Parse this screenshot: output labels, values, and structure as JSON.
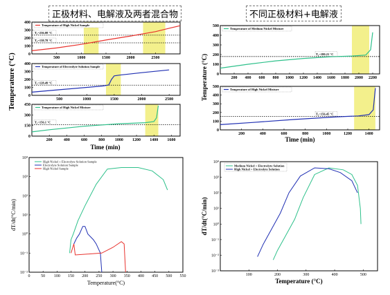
{
  "titles": {
    "left": "正极材料、电解液及两者混合物",
    "right": "不同正极材料+电解液"
  },
  "colors": {
    "red": "#e8312c",
    "blue": "#1f2fb3",
    "green": "#2dc08a",
    "highlight": "#f3f08c"
  },
  "chart_data": [
    {
      "id": "tl1",
      "type": "line",
      "legend": "Temperature of High Nickel Sample",
      "annotations": [
        "T₁=236.08 °C",
        "T₂=138.78 °C"
      ],
      "xlim": [
        0,
        3000
      ],
      "ylim": [
        0,
        400
      ],
      "yticks": [
        0,
        100,
        200,
        300,
        400
      ],
      "xticks": [
        500,
        1000,
        1500,
        2000,
        2500
      ],
      "highlight": [
        [
          1050,
          1350
        ],
        [
          2250,
          2700
        ]
      ],
      "hlines": [
        236,
        139
      ],
      "series": [
        {
          "points": [
            [
              0,
              40
            ],
            [
              500,
              75
            ],
            [
              1000,
              120
            ],
            [
              1500,
              175
            ],
            [
              2000,
              225
            ],
            [
              2500,
              280
            ],
            [
              2800,
              325
            ],
            [
              3000,
              355
            ]
          ]
        }
      ]
    },
    {
      "id": "tl2",
      "type": "line",
      "legend": "Temperature of Electrolyte Solution Sample",
      "annotations": [
        "T₁=128.49 °C"
      ],
      "xlim": [
        0,
        2700
      ],
      "ylim": [
        0,
        400
      ],
      "yticks": [
        0,
        100,
        200,
        300,
        400
      ],
      "xticks": [
        500,
        1000,
        1500,
        2000,
        2500
      ],
      "highlight": [
        [
          1350,
          1620
        ]
      ],
      "hlines": [
        128
      ],
      "series": [
        {
          "points": [
            [
              0,
              40
            ],
            [
              500,
              70
            ],
            [
              1000,
              100
            ],
            [
              1300,
              118
            ],
            [
              1400,
              130
            ],
            [
              1450,
              200
            ],
            [
              1500,
              245
            ],
            [
              1600,
              255
            ],
            [
              2000,
              285
            ],
            [
              2500,
              320
            ]
          ]
        }
      ]
    },
    {
      "id": "tl3",
      "type": "line",
      "legend": "Temperature of High Nickel Mixture",
      "annotations": [
        "T₁=156.1 °C"
      ],
      "xlim": [
        0,
        1700
      ],
      "ylim": [
        0,
        450
      ],
      "yticks": [
        0,
        150,
        300,
        450
      ],
      "xticks": [
        200,
        400,
        600,
        800,
        1000,
        1200,
        1400,
        1600
      ],
      "highlight": [
        [
          1300,
          1450
        ]
      ],
      "hlines": [
        160
      ],
      "series": [
        {
          "points": [
            [
              0,
              60
            ],
            [
              200,
              90
            ],
            [
              600,
              140
            ],
            [
              1000,
              175
            ],
            [
              1300,
              190
            ],
            [
              1400,
              205
            ],
            [
              1430,
              260
            ],
            [
              1450,
              430
            ]
          ]
        }
      ]
    },
    {
      "id": "bl",
      "type": "line",
      "ylabel": "dT/dt(°C/min)",
      "xlabel": "Temperature(°C)",
      "xlim": [
        0,
        550
      ],
      "ylim": [
        0.01,
        10000
      ],
      "log": true,
      "xticks": [
        0,
        50,
        100,
        150,
        200,
        250,
        300,
        350,
        400,
        450,
        500,
        550
      ],
      "yticks": [
        0.01,
        0.1,
        1,
        10,
        100,
        1000,
        10000
      ],
      "yticklabels": [
        "10⁻²",
        "10⁻¹",
        "10⁰",
        "10¹",
        "10²",
        "10³",
        "10⁴"
      ],
      "series": [
        {
          "name": "High Nickel + Electrolyte Solution Sample",
          "color": "green",
          "points": [
            [
              145,
              0.1
            ],
            [
              150,
              0.5
            ],
            [
              158,
              1
            ],
            [
              175,
              5
            ],
            [
              200,
              30
            ],
            [
              240,
              400
            ],
            [
              280,
              2500
            ],
            [
              330,
              3000
            ],
            [
              390,
              3000
            ],
            [
              440,
              2000
            ],
            [
              480,
              700
            ],
            [
              495,
              200
            ]
          ]
        },
        {
          "name": "Electrolyte Solution Sample",
          "color": "blue",
          "points": [
            [
              160,
              0.3
            ],
            [
              170,
              0.6
            ],
            [
              180,
              1
            ],
            [
              192,
              2.5
            ],
            [
              200,
              2.5
            ],
            [
              210,
              1
            ],
            [
              230,
              0.5
            ],
            [
              240,
              0.3
            ],
            [
              255,
              0.1
            ],
            [
              260,
              0.01
            ]
          ]
        },
        {
          "name": "High Nickel Sample",
          "color": "red",
          "points": [
            [
              150,
              0.1
            ],
            [
              160,
              0.3
            ],
            [
              165,
              0.08
            ],
            [
              260,
              0.1
            ],
            [
              300,
              0.2
            ],
            [
              330,
              0.4
            ],
            [
              340,
              0.3
            ],
            [
              345,
              0.01
            ]
          ]
        }
      ]
    },
    {
      "id": "tr1",
      "type": "line",
      "legend": "Temperature of Medium Nickel Mixture",
      "annotations": [
        "T₁=180.21 °C"
      ],
      "xlim": [
        0,
        2300
      ],
      "ylim": [
        0,
        500
      ],
      "yticks": [
        0,
        100,
        200,
        300,
        400,
        500
      ],
      "xticks": [
        200,
        400,
        600,
        800,
        1000,
        1200,
        1400,
        1600,
        1800,
        2000,
        2200
      ],
      "highlight": [
        [
          1900,
          2150
        ]
      ],
      "hlines": [
        180
      ],
      "series": [
        {
          "points": [
            [
              0,
              60
            ],
            [
              400,
              100
            ],
            [
              800,
              135
            ],
            [
              1200,
              160
            ],
            [
              1600,
              178
            ],
            [
              1900,
              185
            ],
            [
              2100,
              195
            ],
            [
              2170,
              250
            ],
            [
              2200,
              430
            ]
          ]
        }
      ]
    },
    {
      "id": "tr2",
      "type": "line",
      "legend": "Temperature of High Nickel Mixture",
      "annotations": [
        "T₁=156.45 °C"
      ],
      "xlim": [
        0,
        1500
      ],
      "ylim": [
        0,
        500
      ],
      "yticks": [
        0,
        100,
        200,
        300,
        400,
        500
      ],
      "xticks": [
        200,
        400,
        600,
        800,
        1000,
        1200,
        1400
      ],
      "xlabel": "Time (min)",
      "highlight": [
        [
          1260,
          1460
        ]
      ],
      "hlines": [
        156
      ],
      "series": [
        {
          "points": [
            [
              0,
              60
            ],
            [
              300,
              85
            ],
            [
              700,
              120
            ],
            [
              1100,
              150
            ],
            [
              1300,
              160
            ],
            [
              1400,
              175
            ],
            [
              1440,
              230
            ],
            [
              1460,
              480
            ]
          ]
        }
      ]
    },
    {
      "id": "br",
      "type": "line",
      "ylabel": "dT/dt(°C/min)",
      "xlabel": "Temperature (°C)",
      "xlim": [
        0,
        550
      ],
      "ylim": [
        0.001,
        10000
      ],
      "log": true,
      "xticks": [
        100,
        200,
        300,
        400,
        500
      ],
      "yticks": [
        0.001,
        0.01,
        0.1,
        1,
        10,
        100,
        1000,
        10000
      ],
      "yticklabels": [
        "10⁻³",
        "10⁻²",
        "10⁻¹",
        "10⁰",
        "10¹",
        "10²",
        "10³",
        "10⁴"
      ],
      "series": [
        {
          "name": "Medium Nickel + Electrolyte Solution",
          "color": "green",
          "points": [
            [
              185,
              0.005
            ],
            [
              200,
              0.02
            ],
            [
              230,
              0.2
            ],
            [
              260,
              2
            ],
            [
              290,
              50
            ],
            [
              330,
              1500
            ],
            [
              380,
              4000
            ],
            [
              430,
              3000
            ],
            [
              460,
              1500
            ],
            [
              480,
              300
            ],
            [
              490,
              10
            ],
            [
              492,
              1
            ]
          ]
        },
        {
          "name": "High Nickel + Electrolyte Solution",
          "color": "blue",
          "points": [
            [
              130,
              0.008
            ],
            [
              150,
              0.05
            ],
            [
              180,
              0.5
            ],
            [
              210,
              5
            ],
            [
              240,
              100
            ],
            [
              280,
              1200
            ],
            [
              330,
              4000
            ],
            [
              380,
              3500
            ],
            [
              420,
              2000
            ],
            [
              460,
              600
            ],
            [
              480,
              100
            ]
          ]
        }
      ]
    }
  ],
  "labels": {
    "left_ylabel": "Temperature (°C)",
    "left_xlabel": "Time (min)",
    "right_ylabel": "Temperature (°C)"
  }
}
